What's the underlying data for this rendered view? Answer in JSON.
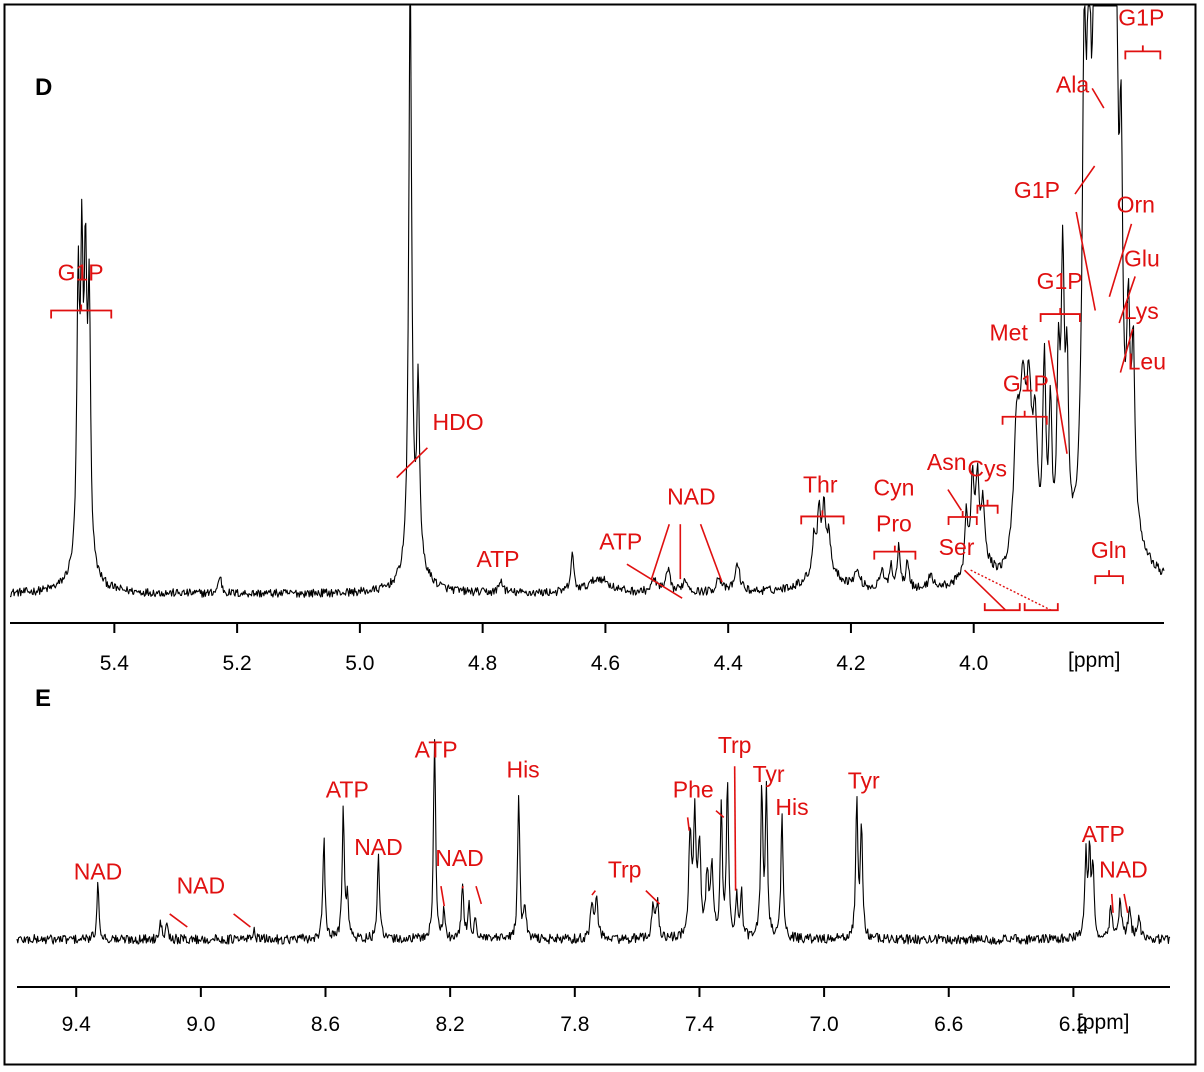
{
  "colors": {
    "spectrum": "#000000",
    "annotation": "#e01010",
    "frame": "#000000"
  },
  "chart_data": [
    {
      "type": "line",
      "panel_label": "D",
      "xlabel": "[ppm]",
      "xlim": [
        5.57,
        3.69
      ],
      "x_reversed": true,
      "tick_values": [
        5.4,
        5.2,
        5.0,
        4.8,
        4.6,
        4.4,
        4.2,
        4.0
      ],
      "tick_labels": [
        "5.4",
        "5.2",
        "5.0",
        "4.8",
        "4.6",
        "4.4",
        "4.2",
        "4.0"
      ],
      "grid": false,
      "ylim": [
        0,
        100
      ],
      "baseline": 1.5,
      "noise": 0.7,
      "peaks": [
        {
          "x": 5.459,
          "h": 44,
          "w": 0.0025
        },
        {
          "x": 5.453,
          "h": 46,
          "w": 0.0025
        },
        {
          "x": 5.447,
          "h": 45,
          "w": 0.0025
        },
        {
          "x": 5.441,
          "h": 43,
          "w": 0.0025
        },
        {
          "x": 5.452,
          "h": 5,
          "w": 0.02
        },
        {
          "x": 5.228,
          "h": 3,
          "w": 0.003
        },
        {
          "x": 4.918,
          "h": 100,
          "w": 0.0028
        },
        {
          "x": 4.905,
          "h": 30,
          "w": 0.0025
        },
        {
          "x": 4.91,
          "h": 5,
          "w": 0.02
        },
        {
          "x": 4.77,
          "h": 2,
          "w": 0.004
        },
        {
          "x": 4.654,
          "h": 6,
          "w": 0.003
        },
        {
          "x": 4.61,
          "h": 2.5,
          "w": 0.02
        },
        {
          "x": 4.52,
          "h": 2,
          "w": 0.006
        },
        {
          "x": 4.498,
          "h": 3.5,
          "w": 0.004
        },
        {
          "x": 4.47,
          "h": 2,
          "w": 0.006
        },
        {
          "x": 4.415,
          "h": 2.5,
          "w": 0.005
        },
        {
          "x": 4.385,
          "h": 4.5,
          "w": 0.005
        },
        {
          "x": 4.26,
          "h": 6,
          "w": 0.003
        },
        {
          "x": 4.252,
          "h": 10,
          "w": 0.003
        },
        {
          "x": 4.244,
          "h": 10,
          "w": 0.003
        },
        {
          "x": 4.236,
          "h": 6,
          "w": 0.003
        },
        {
          "x": 4.245,
          "h": 4,
          "w": 0.03
        },
        {
          "x": 4.19,
          "h": 2.5,
          "w": 0.006
        },
        {
          "x": 4.15,
          "h": 3,
          "w": 0.004
        },
        {
          "x": 4.135,
          "h": 4,
          "w": 0.003
        },
        {
          "x": 4.122,
          "h": 7,
          "w": 0.003
        },
        {
          "x": 4.108,
          "h": 5,
          "w": 0.003
        },
        {
          "x": 4.07,
          "h": 2.5,
          "w": 0.004
        },
        {
          "x": 4.012,
          "h": 10,
          "w": 0.003
        },
        {
          "x": 4.002,
          "h": 14,
          "w": 0.003
        },
        {
          "x": 3.994,
          "h": 13,
          "w": 0.003
        },
        {
          "x": 3.985,
          "h": 9,
          "w": 0.003
        },
        {
          "x": 3.99,
          "h": 5,
          "w": 0.02
        },
        {
          "x": 3.93,
          "h": 22,
          "w": 0.006
        },
        {
          "x": 3.92,
          "h": 25,
          "w": 0.006
        },
        {
          "x": 3.91,
          "h": 24,
          "w": 0.005
        },
        {
          "x": 3.9,
          "h": 21,
          "w": 0.005
        },
        {
          "x": 3.885,
          "h": 32,
          "w": 0.003
        },
        {
          "x": 3.875,
          "h": 24,
          "w": 0.003
        },
        {
          "x": 3.862,
          "h": 30,
          "w": 0.003
        },
        {
          "x": 3.855,
          "h": 46,
          "w": 0.003
        },
        {
          "x": 3.848,
          "h": 28,
          "w": 0.003
        },
        {
          "x": 3.82,
          "h": 70,
          "w": 0.004
        },
        {
          "x": 3.812,
          "h": 74,
          "w": 0.004
        },
        {
          "x": 3.803,
          "h": 98,
          "w": 0.003
        },
        {
          "x": 3.796,
          "h": 76,
          "w": 0.003
        },
        {
          "x": 3.788,
          "h": 98,
          "w": 0.003
        },
        {
          "x": 3.782,
          "h": 87,
          "w": 0.003
        },
        {
          "x": 3.775,
          "h": 92,
          "w": 0.003
        },
        {
          "x": 3.768,
          "h": 73,
          "w": 0.003
        },
        {
          "x": 3.76,
          "h": 50,
          "w": 0.003
        },
        {
          "x": 3.748,
          "h": 30,
          "w": 0.003
        },
        {
          "x": 3.74,
          "h": 28,
          "w": 0.003
        },
        {
          "x": 3.775,
          "h": 22,
          "w": 0.03
        }
      ],
      "annotations": [
        {
          "label": "G1P",
          "lx": 5.455,
          "ly": 54,
          "bracket": [
            5.503,
            5.405
          ],
          "by": 49
        },
        {
          "label": "HDO",
          "lx": 4.84,
          "ly": 29,
          "line": [
            4.89,
            26,
            4.94,
            21
          ]
        },
        {
          "label": "ATP",
          "lx": 4.74,
          "ly": 6,
          "anchor": "end"
        },
        {
          "label": "ATP",
          "lx": 4.575,
          "ly": 9,
          "line": [
            4.565,
            6.5,
            4.475,
            0.8
          ]
        },
        {
          "label": "NAD",
          "lx": 4.46,
          "ly": 16.5,
          "lines": [
            [
              4.496,
              13.2,
              4.525,
              4
            ],
            [
              4.478,
              13.2,
              4.478,
              4
            ],
            [
              4.445,
              13.2,
              4.41,
              3.5
            ]
          ]
        },
        {
          "label": "Thr",
          "lx": 4.25,
          "ly": 18.5,
          "bracket": [
            4.281,
            4.212
          ],
          "by": 14.5
        },
        {
          "label": "Cyn",
          "lx": 4.13,
          "ly": 18
        },
        {
          "label": "Pro",
          "lx": 4.13,
          "ly": 12,
          "bracket": [
            4.162,
            4.095
          ],
          "by": 8.6
        },
        {
          "label": "Asn",
          "lx": 4.044,
          "ly": 22.3,
          "line": [
            4.042,
            19,
            4.02,
            15.5
          ]
        },
        {
          "label": "Cys",
          "lx": 3.978,
          "ly": 21.2,
          "bracket": [
            3.994,
            3.961
          ],
          "by": 16.3
        },
        {
          "label": "",
          "bracket": [
            4.041,
            3.995
          ],
          "by": 14.4
        },
        {
          "label": "Ser",
          "lx": 4.028,
          "ly": 8,
          "line": [
            4.015,
            5.5,
            3.948,
            -1.2
          ],
          "dotted": [
            4.005,
            5.5,
            3.874,
            -1.2
          ]
        },
        {
          "label": "",
          "bracket_down": [
            3.982,
            3.925
          ],
          "by": -1.2
        },
        {
          "label": "",
          "bracket_down": [
            3.917,
            3.863
          ],
          "by": -1.2
        },
        {
          "label": "G1P",
          "lx": 3.915,
          "ly": 35.4,
          "bracket": [
            3.953,
            3.881
          ],
          "by": 31.2
        },
        {
          "label": "G1P",
          "lx": 3.86,
          "ly": 52.6,
          "bracket": [
            3.891,
            3.827
          ],
          "by": 48.4
        },
        {
          "label": "Met",
          "lx": 3.943,
          "ly": 44,
          "line": [
            3.878,
            44,
            3.848,
            25
          ]
        },
        {
          "label": "G1P",
          "lx": 3.897,
          "ly": 67.8,
          "line": [
            3.835,
            68.5,
            3.803,
            73.2
          ],
          "line2": [
            3.833,
            65.5,
            3.802,
            49
          ]
        },
        {
          "label": "Ala",
          "lx": 3.839,
          "ly": 85.5,
          "line": [
            3.807,
            86.2,
            3.788,
            82.9
          ]
        },
        {
          "label": "Orn",
          "lx": 3.736,
          "ly": 65.4,
          "line": [
            3.743,
            63.5,
            3.779,
            51.3
          ]
        },
        {
          "label": "Glu",
          "lx": 3.726,
          "ly": 56.4,
          "line": [
            3.737,
            54.7,
            3.763,
            46.9
          ]
        },
        {
          "label": "Lys",
          "lx": 3.727,
          "ly": 47.6,
          "line": [
            3.741,
            45.9,
            3.761,
            38.6
          ]
        },
        {
          "label": "Leu",
          "lx": 3.718,
          "ly": 39.1
        },
        {
          "label": "G1P",
          "lx": 3.727,
          "ly": 96.7,
          "bracket": [
            3.753,
            3.696
          ],
          "by": 92.4
        },
        {
          "label": "Gln",
          "lx": 3.78,
          "ly": 7.5,
          "bracket": [
            3.802,
            3.757
          ],
          "by": 4.5
        }
      ]
    },
    {
      "type": "line",
      "panel_label": "E",
      "xlabel": "[ppm]",
      "xlim": [
        9.59,
        5.89
      ],
      "x_reversed": true,
      "tick_values": [
        9.4,
        9.0,
        8.6,
        8.2,
        7.8,
        7.4,
        7.0,
        6.6,
        6.2
      ],
      "tick_labels": [
        "9.4",
        "9.0",
        "8.6",
        "8.2",
        "7.8",
        "7.4",
        "7.0",
        "6.6",
        "6.2"
      ],
      "grid": false,
      "ylim": [
        0,
        100
      ],
      "baseline": 7,
      "noise": 2.2,
      "peaks": [
        {
          "x": 9.33,
          "h": 25,
          "w": 0.004
        },
        {
          "x": 9.13,
          "h": 10,
          "w": 0.004
        },
        {
          "x": 9.11,
          "h": 9,
          "w": 0.004
        },
        {
          "x": 8.83,
          "h": 5,
          "w": 0.004
        },
        {
          "x": 8.605,
          "h": 45,
          "w": 0.004
        },
        {
          "x": 8.543,
          "h": 60,
          "w": 0.004
        },
        {
          "x": 8.53,
          "h": 18,
          "w": 0.004
        },
        {
          "x": 8.43,
          "h": 38,
          "w": 0.004
        },
        {
          "x": 8.25,
          "h": 90,
          "w": 0.004
        },
        {
          "x": 8.22,
          "h": 12,
          "w": 0.004
        },
        {
          "x": 8.16,
          "h": 25,
          "w": 0.004
        },
        {
          "x": 8.14,
          "h": 15,
          "w": 0.004
        },
        {
          "x": 8.12,
          "h": 10,
          "w": 0.004
        },
        {
          "x": 7.98,
          "h": 66,
          "w": 0.004
        },
        {
          "x": 7.96,
          "h": 15,
          "w": 0.004
        },
        {
          "x": 7.745,
          "h": 17,
          "w": 0.005
        },
        {
          "x": 7.73,
          "h": 18,
          "w": 0.005
        },
        {
          "x": 7.55,
          "h": 14,
          "w": 0.005
        },
        {
          "x": 7.535,
          "h": 16,
          "w": 0.005
        },
        {
          "x": 7.43,
          "h": 45,
          "w": 0.005
        },
        {
          "x": 7.415,
          "h": 52,
          "w": 0.005
        },
        {
          "x": 7.4,
          "h": 40,
          "w": 0.005
        },
        {
          "x": 7.375,
          "h": 28,
          "w": 0.005
        },
        {
          "x": 7.36,
          "h": 30,
          "w": 0.005
        },
        {
          "x": 7.33,
          "h": 58,
          "w": 0.004
        },
        {
          "x": 7.31,
          "h": 70,
          "w": 0.004
        },
        {
          "x": 7.28,
          "h": 18,
          "w": 0.004
        },
        {
          "x": 7.265,
          "h": 20,
          "w": 0.004
        },
        {
          "x": 7.2,
          "h": 68,
          "w": 0.004
        },
        {
          "x": 7.185,
          "h": 66,
          "w": 0.004
        },
        {
          "x": 7.135,
          "h": 58,
          "w": 0.004
        },
        {
          "x": 6.895,
          "h": 62,
          "w": 0.004
        },
        {
          "x": 6.88,
          "h": 52,
          "w": 0.004
        },
        {
          "x": 6.16,
          "h": 38,
          "w": 0.004
        },
        {
          "x": 6.148,
          "h": 40,
          "w": 0.004
        },
        {
          "x": 6.137,
          "h": 32,
          "w": 0.004
        },
        {
          "x": 6.08,
          "h": 14,
          "w": 0.005
        },
        {
          "x": 6.05,
          "h": 18,
          "w": 0.005
        },
        {
          "x": 6.02,
          "h": 12,
          "w": 0.006
        },
        {
          "x": 5.99,
          "h": 10,
          "w": 0.006
        }
      ],
      "annotations": [
        {
          "label": "NAD",
          "lx": 9.33,
          "ly": 34
        },
        {
          "label": "NAD",
          "lx": 9.0,
          "ly": 27.8,
          "lines": [
            [
              9.1,
              18.5,
              9.0435,
              12.6
            ],
            [
              8.895,
              18.5,
              8.841,
              12.6
            ]
          ]
        },
        {
          "label": "ATP",
          "lx": 8.53,
          "ly": 71
        },
        {
          "label": "NAD",
          "lx": 8.43,
          "ly": 45
        },
        {
          "label": "ATP",
          "lx": 8.245,
          "ly": 89
        },
        {
          "label": "NAD",
          "lx": 8.17,
          "ly": 40,
          "lines": [
            [
              8.2295,
              31,
              8.2189,
              22
            ],
            [
              8.1585,
              31,
              8.1605,
              30
            ],
            [
              8.117,
              31,
              8.1,
              23
            ]
          ]
        },
        {
          "label": "His",
          "lx": 7.966,
          "ly": 80
        },
        {
          "label": "Trp",
          "lx": 7.64,
          "ly": 35,
          "lines": [
            [
              7.734,
              29,
              7.745,
              27
            ],
            [
              7.572,
              29,
              7.528,
              23
            ]
          ]
        },
        {
          "label": "Phe",
          "lx": 7.42,
          "ly": 71,
          "lines": [
            [
              7.438,
              62,
              7.4328,
              56
            ]
          ],
          "line2": [
            7.347,
            65,
            7.322,
            62
          ]
        },
        {
          "label": "Trp",
          "lx": 7.287,
          "ly": 91,
          "line": [
            7.287,
            85,
            7.284,
            29
          ]
        },
        {
          "label": "Tyr",
          "lx": 7.178,
          "ly": 78
        },
        {
          "label": "His",
          "lx": 7.103,
          "ly": 63
        },
        {
          "label": "Tyr",
          "lx": 6.873,
          "ly": 75
        },
        {
          "label": "ATP",
          "lx": 6.104,
          "ly": 51
        },
        {
          "label": "NAD",
          "lx": 6.0395,
          "ly": 35,
          "lines": [
            [
              6.077,
              27.5,
              6.0727,
              19
            ],
            [
              6.0373,
              27.5,
              6.0258,
              19
            ]
          ]
        }
      ]
    }
  ]
}
